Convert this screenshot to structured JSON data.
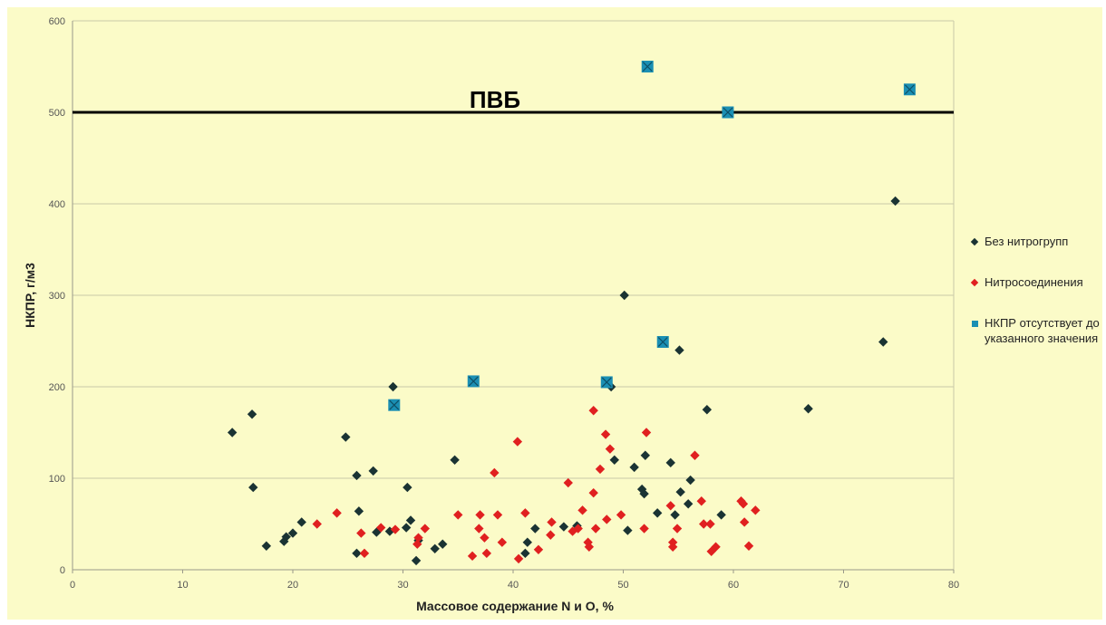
{
  "chart_data": {
    "type": "scatter",
    "title": "",
    "xlabel": "Массовое содержание N и O, %",
    "ylabel": "НКПР, г/м3",
    "xlim": [
      0,
      80
    ],
    "ylim": [
      0,
      600
    ],
    "x_ticks": [
      "0",
      "10",
      "20",
      "30",
      "40",
      "50",
      "60",
      "70",
      "80"
    ],
    "y_ticks": [
      "0",
      "100",
      "200",
      "300",
      "400",
      "500",
      "600"
    ],
    "grid": "horizontal",
    "legend_position": "right",
    "reference_line": {
      "label": "ПВБ",
      "y": 500
    },
    "series": [
      {
        "name": "Без нитрогрупп",
        "marker": "diamond",
        "color": "#1a3333",
        "points": [
          [
            14.5,
            150
          ],
          [
            16.3,
            170
          ],
          [
            16.4,
            90
          ],
          [
            17.6,
            26
          ],
          [
            19.2,
            31
          ],
          [
            19.4,
            36
          ],
          [
            20.0,
            40
          ],
          [
            20.8,
            52
          ],
          [
            24.8,
            145
          ],
          [
            25.8,
            103
          ],
          [
            25.8,
            18
          ],
          [
            26.0,
            64
          ],
          [
            27.3,
            108
          ],
          [
            27.6,
            41
          ],
          [
            28.8,
            42
          ],
          [
            29.1,
            200
          ],
          [
            30.3,
            46
          ],
          [
            30.4,
            90
          ],
          [
            30.7,
            54
          ],
          [
            31.2,
            10
          ],
          [
            31.4,
            32
          ],
          [
            32.9,
            23
          ],
          [
            33.6,
            28
          ],
          [
            34.7,
            120
          ],
          [
            41.1,
            18
          ],
          [
            41.3,
            30
          ],
          [
            42.0,
            45
          ],
          [
            44.6,
            47
          ],
          [
            45.8,
            48
          ],
          [
            48.9,
            200
          ],
          [
            49.2,
            120
          ],
          [
            50.1,
            300
          ],
          [
            50.4,
            43
          ],
          [
            51.0,
            112
          ],
          [
            51.7,
            88
          ],
          [
            51.9,
            83
          ],
          [
            52.0,
            125
          ],
          [
            53.1,
            62
          ],
          [
            54.3,
            117
          ],
          [
            54.7,
            60
          ],
          [
            55.1,
            240
          ],
          [
            55.2,
            85
          ],
          [
            55.9,
            72
          ],
          [
            56.1,
            98
          ],
          [
            57.6,
            175
          ],
          [
            58.9,
            60
          ],
          [
            66.8,
            176
          ],
          [
            73.6,
            249
          ],
          [
            74.7,
            403
          ]
        ]
      },
      {
        "name": "Нитросоединения",
        "marker": "diamond",
        "color": "#e02020",
        "points": [
          [
            22.2,
            50
          ],
          [
            24.0,
            62
          ],
          [
            26.2,
            40
          ],
          [
            26.5,
            18
          ],
          [
            28.0,
            46
          ],
          [
            29.3,
            44
          ],
          [
            31.3,
            28
          ],
          [
            31.4,
            35
          ],
          [
            32.0,
            45
          ],
          [
            35.0,
            60
          ],
          [
            36.3,
            15
          ],
          [
            36.9,
            45
          ],
          [
            37.0,
            60
          ],
          [
            37.4,
            35
          ],
          [
            37.6,
            18
          ],
          [
            38.3,
            106
          ],
          [
            38.6,
            60
          ],
          [
            39.0,
            30
          ],
          [
            40.4,
            140
          ],
          [
            40.5,
            12
          ],
          [
            41.1,
            62
          ],
          [
            42.3,
            22
          ],
          [
            43.4,
            38
          ],
          [
            43.5,
            52
          ],
          [
            45.0,
            95
          ],
          [
            45.4,
            42
          ],
          [
            45.9,
            45
          ],
          [
            46.3,
            65
          ],
          [
            46.8,
            30
          ],
          [
            46.9,
            25
          ],
          [
            47.3,
            174
          ],
          [
            47.3,
            84
          ],
          [
            47.5,
            45
          ],
          [
            47.9,
            110
          ],
          [
            48.4,
            148
          ],
          [
            48.5,
            55
          ],
          [
            48.8,
            132
          ],
          [
            49.8,
            60
          ],
          [
            51.9,
            45
          ],
          [
            52.1,
            150
          ],
          [
            54.3,
            70
          ],
          [
            54.5,
            30
          ],
          [
            54.5,
            25
          ],
          [
            54.9,
            45
          ],
          [
            56.5,
            125
          ],
          [
            57.1,
            75
          ],
          [
            57.3,
            50
          ],
          [
            57.9,
            50
          ],
          [
            58.0,
            20
          ],
          [
            58.4,
            25
          ],
          [
            60.7,
            75
          ],
          [
            60.9,
            72
          ],
          [
            61.0,
            52
          ],
          [
            61.4,
            26
          ],
          [
            62.0,
            65
          ]
        ]
      },
      {
        "name": "НКПР отсутствует до указанного значения",
        "marker": "square-x",
        "color": "#1b8fb3",
        "points": [
          [
            29.2,
            180
          ],
          [
            36.4,
            206
          ],
          [
            48.5,
            205
          ],
          [
            52.2,
            550
          ],
          [
            53.6,
            249
          ],
          [
            59.5,
            500
          ],
          [
            76.0,
            525
          ]
        ]
      }
    ]
  }
}
